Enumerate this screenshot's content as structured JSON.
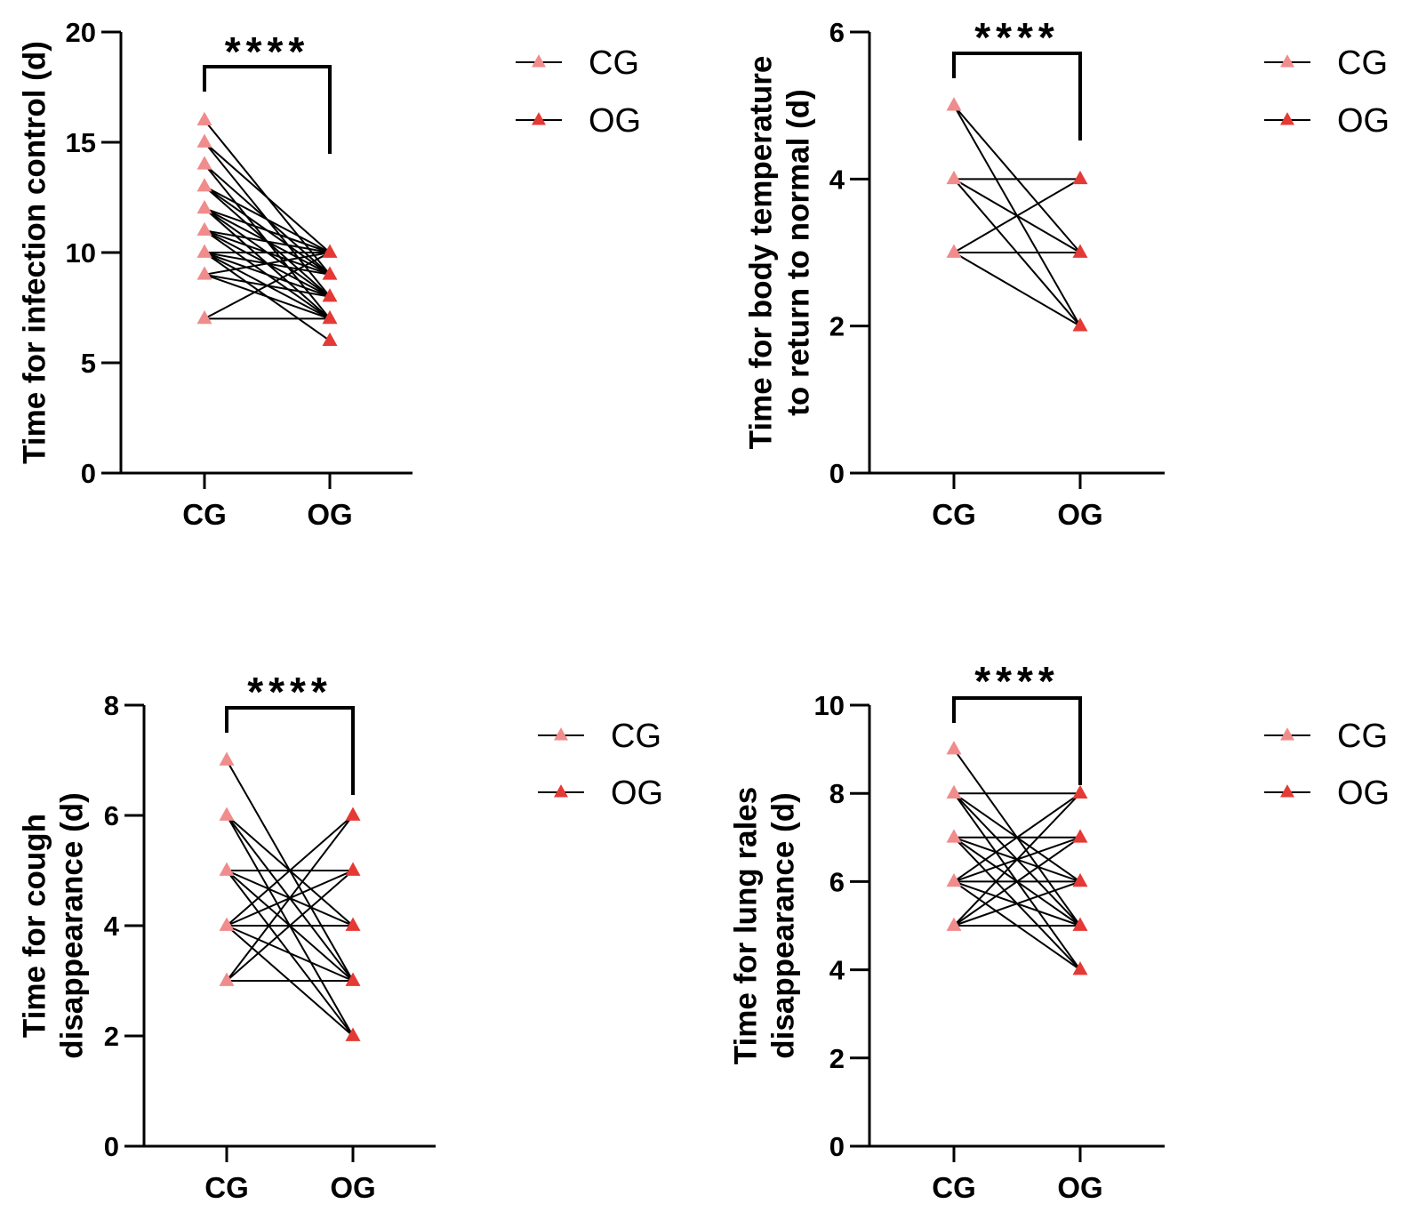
{
  "colors": {
    "cg": "#f08c8c",
    "og": "#e53935",
    "line": "#000000"
  },
  "chart_data": [
    {
      "type": "line",
      "chart_kind": "before-after paired plot",
      "ylabel_lines": [
        "Time for infection control (d)"
      ],
      "categories": [
        "CG",
        "OG"
      ],
      "ylim": [
        0,
        20
      ],
      "yticks": [
        0,
        5,
        10,
        15,
        20
      ],
      "significance": "****",
      "legend": [
        "CG",
        "OG"
      ],
      "pairs": [
        [
          16,
          9
        ],
        [
          15,
          10
        ],
        [
          15,
          8
        ],
        [
          14,
          9
        ],
        [
          14,
          7
        ],
        [
          13,
          10
        ],
        [
          13,
          8
        ],
        [
          13,
          9
        ],
        [
          12,
          9
        ],
        [
          12,
          7
        ],
        [
          12,
          8
        ],
        [
          12,
          10
        ],
        [
          11,
          8
        ],
        [
          11,
          9
        ],
        [
          11,
          7
        ],
        [
          11,
          10
        ],
        [
          10,
          8
        ],
        [
          10,
          9
        ],
        [
          10,
          6
        ],
        [
          10,
          7
        ],
        [
          10,
          10
        ],
        [
          9,
          7
        ],
        [
          9,
          8
        ],
        [
          9,
          10
        ],
        [
          7,
          7
        ],
        [
          7,
          10
        ]
      ]
    },
    {
      "type": "line",
      "chart_kind": "before-after paired plot",
      "ylabel_lines": [
        "Time for body temperature",
        "to return to normal (d)"
      ],
      "categories": [
        "CG",
        "OG"
      ],
      "ylim": [
        0,
        6
      ],
      "yticks": [
        0,
        2,
        4,
        6
      ],
      "significance": "****",
      "legend": [
        "CG",
        "OG"
      ],
      "pairs": [
        [
          5,
          3
        ],
        [
          5,
          2
        ],
        [
          4,
          4
        ],
        [
          4,
          3
        ],
        [
          4,
          2
        ],
        [
          3,
          4
        ],
        [
          3,
          3
        ],
        [
          3,
          2
        ]
      ]
    },
    {
      "type": "line",
      "chart_kind": "before-after paired plot",
      "ylabel_lines": [
        "Time for cough",
        "disappearance (d)"
      ],
      "categories": [
        "CG",
        "OG"
      ],
      "ylim": [
        0,
        8
      ],
      "yticks": [
        0,
        2,
        4,
        6,
        8
      ],
      "significance": "****",
      "legend": [
        "CG",
        "OG"
      ],
      "pairs": [
        [
          7,
          3
        ],
        [
          6,
          4
        ],
        [
          6,
          2
        ],
        [
          6,
          3
        ],
        [
          5,
          5
        ],
        [
          5,
          3
        ],
        [
          5,
          2
        ],
        [
          5,
          4
        ],
        [
          4,
          6
        ],
        [
          4,
          4
        ],
        [
          4,
          3
        ],
        [
          4,
          2
        ],
        [
          4,
          5
        ],
        [
          3,
          3
        ],
        [
          3,
          5
        ],
        [
          3,
          6
        ]
      ]
    },
    {
      "type": "line",
      "chart_kind": "before-after paired plot",
      "ylabel_lines": [
        "Time for lung rales",
        "disappearance (d)"
      ],
      "categories": [
        "CG",
        "OG"
      ],
      "ylim": [
        0,
        10
      ],
      "yticks": [
        0,
        2,
        4,
        6,
        8,
        10
      ],
      "significance": "****",
      "legend": [
        "CG",
        "OG"
      ],
      "pairs": [
        [
          9,
          5
        ],
        [
          8,
          8
        ],
        [
          8,
          6
        ],
        [
          8,
          5
        ],
        [
          8,
          4
        ],
        [
          7,
          7
        ],
        [
          7,
          5
        ],
        [
          7,
          6
        ],
        [
          7,
          4
        ],
        [
          6,
          6
        ],
        [
          6,
          8
        ],
        [
          6,
          5
        ],
        [
          6,
          7
        ],
        [
          6,
          4
        ],
        [
          5,
          5
        ],
        [
          5,
          7
        ],
        [
          5,
          6
        ],
        [
          5,
          8
        ]
      ]
    }
  ]
}
